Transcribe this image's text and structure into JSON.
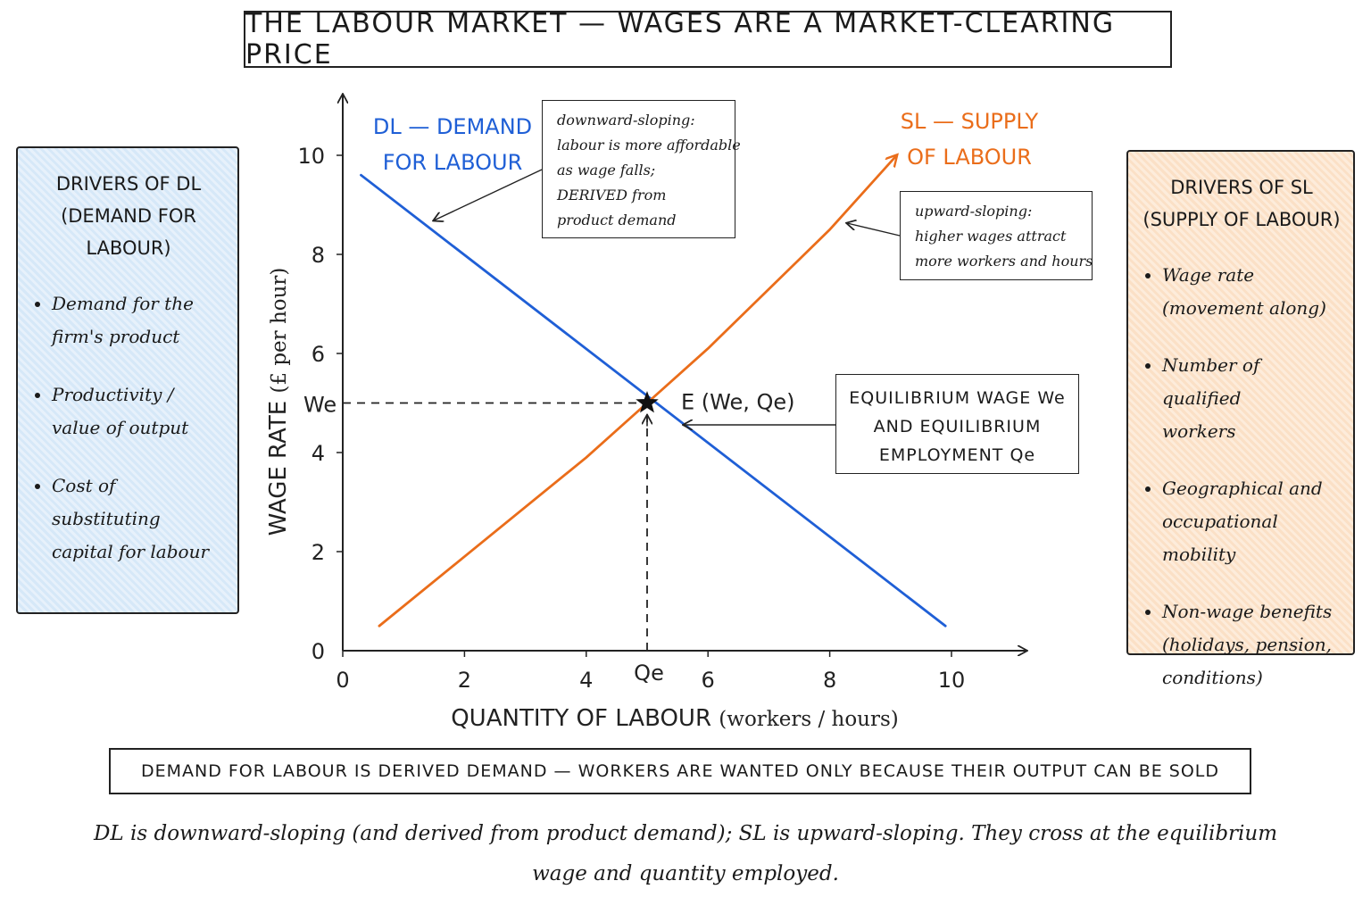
{
  "title": "THE LABOUR MARKET — WAGES ARE A MARKET-CLEARING PRICE",
  "left_panel": {
    "heading_line1": "DRIVERS OF DL",
    "heading_line2": "(DEMAND FOR LABOUR)",
    "items": [
      {
        "line1": "Demand for the",
        "line2": "firm's product"
      },
      {
        "line1": "Productivity /",
        "line2": "value of output"
      },
      {
        "line1": "Cost of substituting",
        "line2": "capital for labour"
      }
    ]
  },
  "right_panel": {
    "heading_line1": "DRIVERS OF SL",
    "heading_line2": "(SUPPLY OF LABOUR)",
    "items": [
      {
        "lines": [
          "Wage rate",
          "(movement along)"
        ]
      },
      {
        "lines": [
          "Number of qualified",
          "workers"
        ]
      },
      {
        "lines": [
          "Geographical and",
          "occupational mobility"
        ]
      },
      {
        "lines": [
          "Non-wage benefits",
          "(holidays, pension,",
          "conditions)"
        ]
      }
    ]
  },
  "annotations": {
    "dl_note": [
      "downward-sloping:",
      "labour is more affordable",
      "as wage falls;",
      "DERIVED from",
      "product demand"
    ],
    "sl_note": [
      "upward-sloping:",
      "higher wages attract",
      "more workers and hours"
    ],
    "eq_note": [
      "EQUILIBRIUM WAGE We",
      "AND EQUILIBRIUM",
      "EMPLOYMENT Qe"
    ]
  },
  "bottom_banner": "DEMAND FOR LABOUR IS DERIVED DEMAND — WORKERS ARE WANTED ONLY BECAUSE THEIR OUTPUT CAN BE SOLD",
  "caption_line1": "DL is downward-sloping (and derived from product demand); SL is upward-sloping. They cross at the equilibrium",
  "caption_line2": "wage and quantity employed.",
  "chart_data": {
    "type": "line",
    "xlabel_main": "QUANTITY OF LABOUR",
    "xlabel_unit": "(workers / hours)",
    "ylabel_main": "WAGE RATE",
    "ylabel_unit": "(£ per hour)",
    "xlim": [
      0,
      11
    ],
    "ylim": [
      0,
      11
    ],
    "x_ticks": [
      0,
      2,
      4,
      6,
      8,
      10
    ],
    "y_ticks": [
      0,
      2,
      4,
      6,
      8,
      10
    ],
    "grid": false,
    "series": [
      {
        "name_line1": "DL — DEMAND",
        "name_line2": "FOR LABOUR",
        "color": "#1f5fd6",
        "x": [
          0.3,
          9.9
        ],
        "y": [
          9.6,
          0.5
        ]
      },
      {
        "name_line1": "SL — SUPPLY",
        "name_line2": "OF LABOUR",
        "color": "#ea6d1a",
        "x": [
          0.6,
          2.0,
          4.0,
          5.0,
          6.0,
          8.0,
          9.1
        ],
        "y": [
          0.5,
          1.9,
          3.9,
          5.0,
          6.1,
          8.5,
          10.0
        ]
      }
    ],
    "equilibrium": {
      "x": 5,
      "y": 5,
      "label": "E (We, Qe)",
      "x_marker": "Qe",
      "y_marker": "We"
    }
  }
}
